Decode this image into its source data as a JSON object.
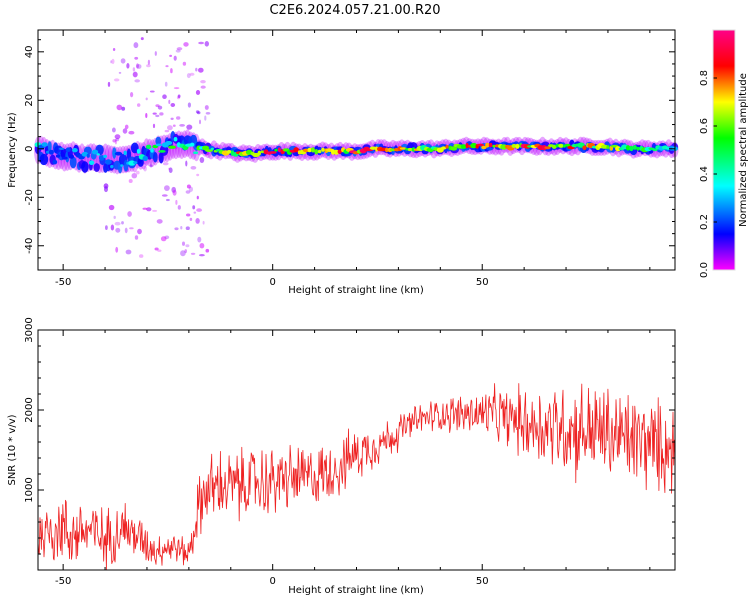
{
  "title": "C2E6.2024.057.21.00.R20",
  "chart_data": [
    {
      "type": "heatmap",
      "title": "C2E6.2024.057.21.00.R20",
      "xlabel": "Height of straight line (km)",
      "ylabel": "Frequency (Hz)",
      "xlim": [
        -56,
        96
      ],
      "ylim": [
        -50,
        49
      ],
      "x_ticks": [
        "-50",
        "0",
        "50"
      ],
      "y_ticks": [
        "-40",
        "-20",
        "0",
        "20",
        "40"
      ],
      "colorbar": {
        "label": "Normalized spectral amplitude",
        "range": [
          0,
          1
        ],
        "ticks": [
          "0.0",
          "0.2",
          "0.4",
          "0.6",
          "0.8"
        ],
        "colormap": [
          "#ff00ff",
          "#0000ff",
          "#00ffff",
          "#00ff00",
          "#ffff00",
          "#ff0000",
          "#ff00aa"
        ]
      },
      "ridge": {
        "x": [
          -56,
          -52,
          -48,
          -44,
          -40,
          -36,
          -32,
          -28,
          -24,
          -20,
          -16,
          -12,
          -8,
          -4,
          0,
          5,
          10,
          15,
          20,
          25,
          30,
          35,
          40,
          45,
          50,
          55,
          60,
          65,
          70,
          75,
          80,
          85,
          90,
          96
        ],
        "freq_hz": [
          0,
          -3,
          -3,
          -4,
          -4,
          -5,
          -3,
          -1,
          1,
          2,
          0,
          -1,
          -2,
          -2,
          -1,
          -1,
          -1,
          -1,
          -1,
          0,
          0,
          0,
          0,
          1,
          1,
          1,
          1,
          1,
          1,
          1,
          1,
          0,
          0,
          0
        ],
        "amplitude": [
          0.35,
          0.3,
          0.3,
          0.3,
          0.35,
          0.3,
          0.4,
          0.5,
          0.55,
          0.5,
          0.6,
          0.7,
          0.8,
          0.75,
          0.9,
          0.85,
          0.8,
          0.85,
          0.9,
          0.8,
          0.75,
          0.7,
          0.75,
          0.8,
          0.85,
          0.85,
          0.9,
          0.85,
          0.8,
          0.75,
          0.7,
          0.6,
          0.5,
          0.4
        ]
      },
      "grid": false
    },
    {
      "type": "line",
      "xlabel": "Height of straight line (km)",
      "ylabel": "SNR (10 * v/v)",
      "xlim": [
        -56,
        96
      ],
      "ylim": [
        0,
        3000
      ],
      "x_ticks": [
        "-50",
        "0",
        "50"
      ],
      "y_ticks": [
        "1000",
        "2000",
        "3000"
      ],
      "color": "#ee2222",
      "series": [
        {
          "x": [
            -56,
            -52,
            -48,
            -44,
            -40,
            -36,
            -32,
            -28,
            -24,
            -20,
            -18,
            -16,
            -12,
            -8,
            -4,
            0,
            4,
            8,
            12,
            16,
            20,
            24,
            28,
            32,
            36,
            40,
            44,
            48,
            52,
            56,
            60,
            64,
            68,
            72,
            76,
            80,
            84,
            88,
            92,
            96
          ],
          "y": [
            400,
            550,
            450,
            500,
            380,
            550,
            400,
            250,
            300,
            200,
            700,
            1000,
            1050,
            1050,
            1100,
            1100,
            1150,
            1150,
            1200,
            1300,
            1450,
            1550,
            1650,
            1800,
            1900,
            1950,
            1950,
            1950,
            1950,
            1900,
            1850,
            1800,
            1800,
            1750,
            1750,
            1700,
            1650,
            1600,
            1550,
            1500
          ],
          "spread": [
            450,
            600,
            500,
            550,
            450,
            450,
            350,
            250,
            250,
            200,
            450,
            550,
            550,
            550,
            550,
            550,
            500,
            500,
            450,
            450,
            400,
            350,
            300,
            250,
            250,
            250,
            300,
            350,
            400,
            450,
            550,
            650,
            700,
            750,
            750,
            750,
            750,
            750,
            700,
            700
          ]
        }
      ],
      "grid": false
    }
  ]
}
